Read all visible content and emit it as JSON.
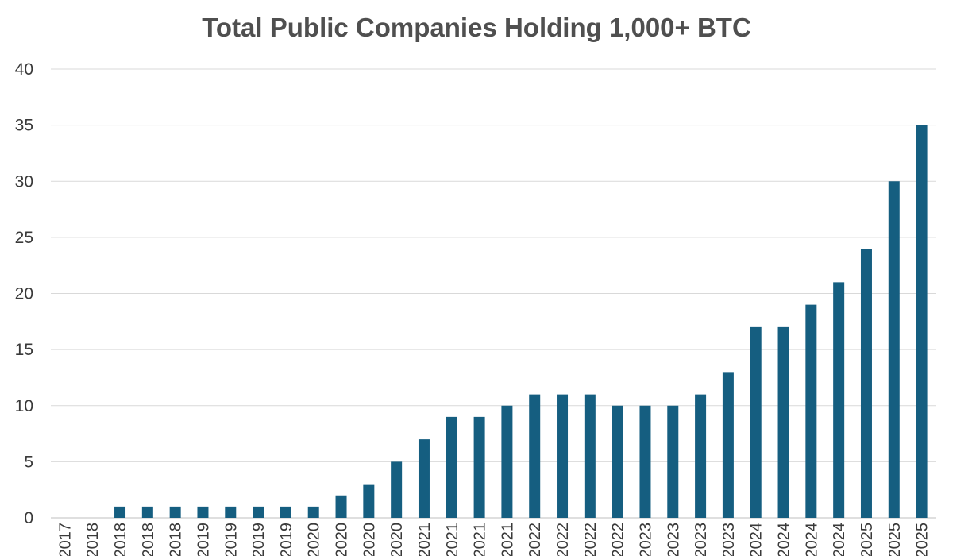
{
  "chart_data": {
    "type": "bar",
    "title": "Total Public Companies Holding 1,000+ BTC",
    "xlabel": "",
    "ylabel": "",
    "ylim": [
      0,
      40
    ],
    "yticks": [
      0,
      5,
      10,
      15,
      20,
      25,
      30,
      35,
      40
    ],
    "grid": true,
    "legend": "none",
    "bar_color": "#155e80",
    "categories": [
      "2017",
      "2018",
      "2018",
      "2018",
      "2018",
      "2019",
      "2019",
      "2019",
      "2019",
      "2020",
      "2020",
      "2020",
      "2020",
      "2021",
      "2021",
      "2021",
      "2021",
      "2022",
      "2022",
      "2022",
      "2022",
      "2023",
      "2023",
      "2023",
      "2023",
      "2024",
      "2024",
      "2024",
      "2024",
      "2025",
      "2025",
      "2025"
    ],
    "values": [
      0,
      0,
      1,
      1,
      1,
      1,
      1,
      1,
      1,
      1,
      2,
      3,
      5,
      7,
      9,
      9,
      10,
      11,
      11,
      11,
      10,
      10,
      10,
      11,
      13,
      17,
      17,
      19,
      21,
      24,
      30,
      35
    ]
  }
}
